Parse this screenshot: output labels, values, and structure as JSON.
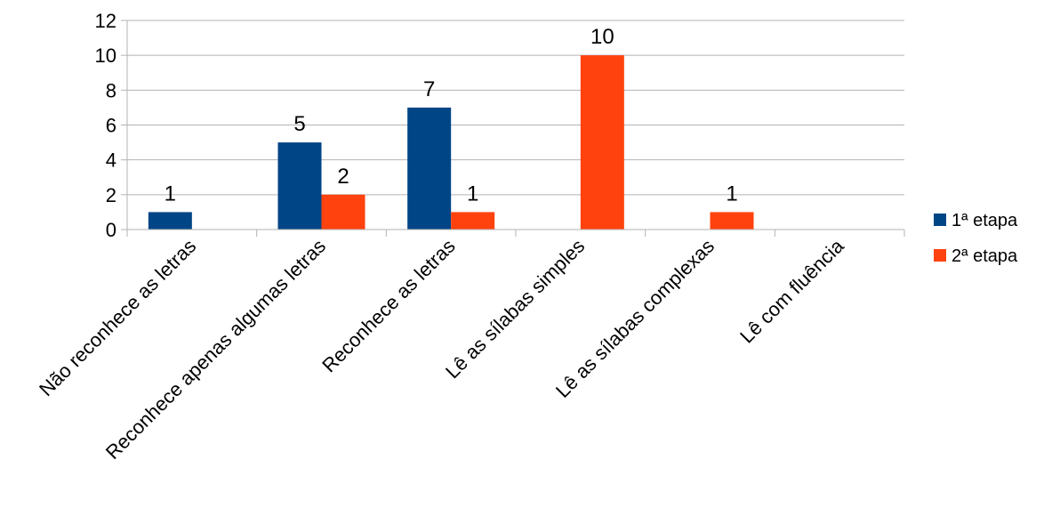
{
  "chart_data": {
    "type": "bar",
    "categories": [
      "Não reconhece as letras",
      "Reconhece apenas algumas letras",
      "Reconhece as letras",
      "Lê as sílabas simples",
      "Lê as sílabas complexas",
      "Lê com fluência"
    ],
    "series": [
      {
        "name": "1ª etapa",
        "color": "#004586",
        "values": [
          1,
          5,
          7,
          0,
          0,
          0
        ],
        "labels": [
          "1",
          "5",
          "7",
          "",
          "",
          ""
        ]
      },
      {
        "name": "2ª etapa",
        "color": "#ff420e",
        "values": [
          0,
          2,
          1,
          10,
          1,
          0
        ],
        "labels": [
          "",
          "2",
          "1",
          "10",
          "1",
          ""
        ]
      }
    ],
    "ylim": [
      0,
      12
    ],
    "yticks": [
      "0",
      "2",
      "4",
      "6",
      "8",
      "10",
      "12"
    ],
    "title": "",
    "xlabel": "",
    "ylabel": "",
    "grid": true,
    "legend_position": "right"
  }
}
